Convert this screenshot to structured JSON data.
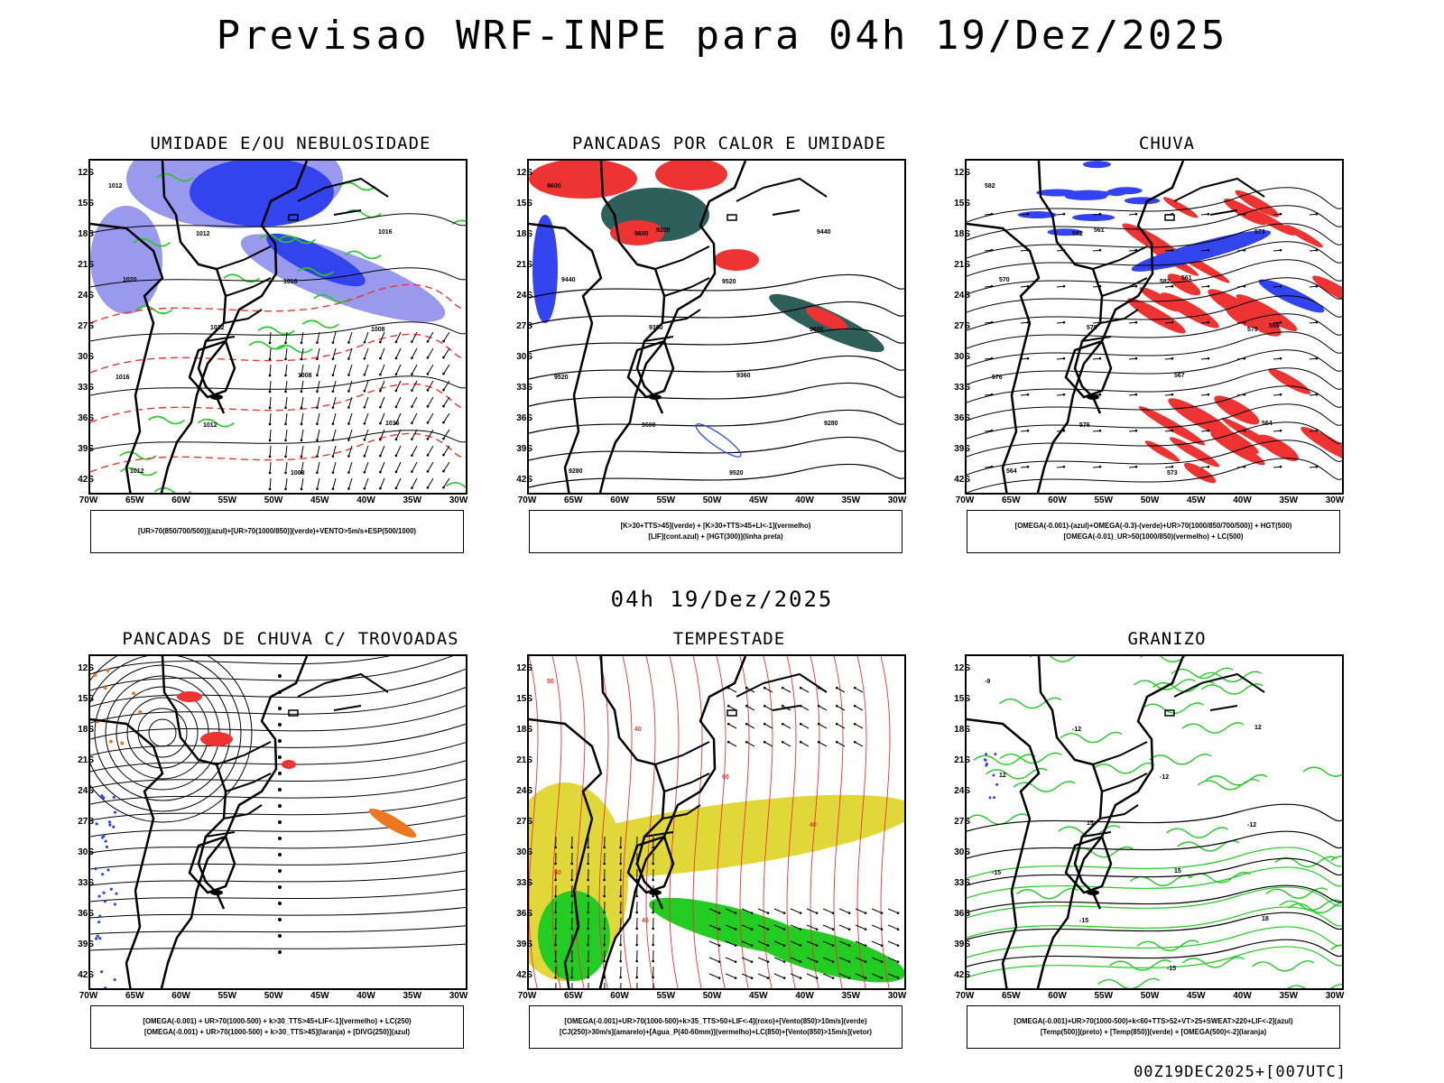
{
  "main_title": "Previsao WRF-INPE  para 04h 19/Dez/2025",
  "mid_title": "04h 19/Dez/2025",
  "footer": "00Z19DEC2025+[007UTC]",
  "axes": {
    "lat_labels": [
      "12S",
      "15S",
      "18S",
      "21S",
      "24S",
      "27S",
      "30S",
      "33S",
      "36S",
      "39S",
      "42S"
    ],
    "lon_labels": [
      "70W",
      "65W",
      "60W",
      "55W",
      "50W",
      "45W",
      "40W",
      "35W",
      "30W"
    ]
  },
  "colors": {
    "blue": "#3344ee",
    "lightblue": "#9999ee",
    "green": "#22cc22",
    "red": "#ee3333",
    "darkteal": "#2f5f5a",
    "orange": "#ee7722",
    "yellow": "#e0d838"
  },
  "panels": [
    {
      "id": "umidade",
      "title": "UMIDADE E/OU NEBULOSIDADE",
      "legend": [
        "[UR>70(850/700/500)](azul)+[UR>70(1000/850)](verde)+VENTO>5m/s+ESP(500/1000)"
      ],
      "contour_labels": [
        "1012",
        "1012",
        "1016",
        "1008",
        "1016",
        "1012",
        "1008",
        "1016",
        "1020",
        "1012",
        "1008",
        "1016",
        "1012"
      ]
    },
    {
      "id": "pancadas_calor",
      "title": "PANCADAS POR CALOR E UMIDADE",
      "legend": [
        "[K>30+TTS>45](verde) + [K>30+TTS>45+LI<-1](vermelho)",
        "[LIF](cont.azul) + [HGT(300)](linha preta)"
      ],
      "contour_labels": [
        "9600",
        "9600",
        "9520",
        "9600",
        "9520",
        "9600",
        "9520",
        "9440",
        "9440",
        "9360",
        "9360",
        "9280",
        "9280",
        "9200"
      ]
    },
    {
      "id": "chuva",
      "title": "CHUVA",
      "legend": [
        "[OMEGA(-0.001)-(azul)+OMEGA(-0.3)-(verde)+UR>70(1000/850/700/500)] + HGT(500)",
        "[OMEGA(-0.01)_UR>50(1000/850)(vermelho) + LC(500)"
      ],
      "contour_labels": [
        "582",
        "582",
        "582",
        "579",
        "576",
        "576",
        "573",
        "573",
        "570",
        "570",
        "567",
        "564",
        "564",
        "561",
        "561",
        "558"
      ]
    },
    {
      "id": "pancadas_trovoadas",
      "title": "PANCADAS DE CHUVA C/ TROVOADAS",
      "legend": [
        "[OMEGA(-0.001) + UR>70(1000-500) + k>30_TTS>45+LIF<-1](vermelho) + LC(250)",
        "[OMEGA(-0.001) + UR>70(1000-500) + k>30_TTS>45](laranja) + [DIVG(250)](azul)"
      ],
      "contour_labels": []
    },
    {
      "id": "tempestade",
      "title": "TEMPESTADE",
      "legend": [
        "[OMEGA(-0.001)+UR>70(1000-500)+k>35_TTS>50+LIF<-4](roxo)+[Vento(850)>10m/s](verde)",
        "[CJ(250)>30m/s](amarelo)+[Agua_P(40-60mm)](vermelho)+LC(850)+[Vento(850)>15m/s](vetor)"
      ],
      "contour_labels": [
        "50",
        "40",
        "60",
        "40",
        "50",
        "40"
      ]
    },
    {
      "id": "granizo",
      "title": "GRANIZO",
      "legend": [
        "[OMEGA(-0.001)+UR>70(1000-500)+k<60+TTS>52+VT>25+SWEAT>220+LIF<-2](azul)",
        "[Temp(500)](preto) + [Temp(850)](verde) + [OMEGA(500)<-2](laranja)"
      ],
      "contour_labels": [
        "-9",
        "-12",
        "-12",
        "-12",
        "-15",
        "-15",
        "-15",
        "12",
        "12",
        "15",
        "15",
        "18"
      ]
    }
  ]
}
